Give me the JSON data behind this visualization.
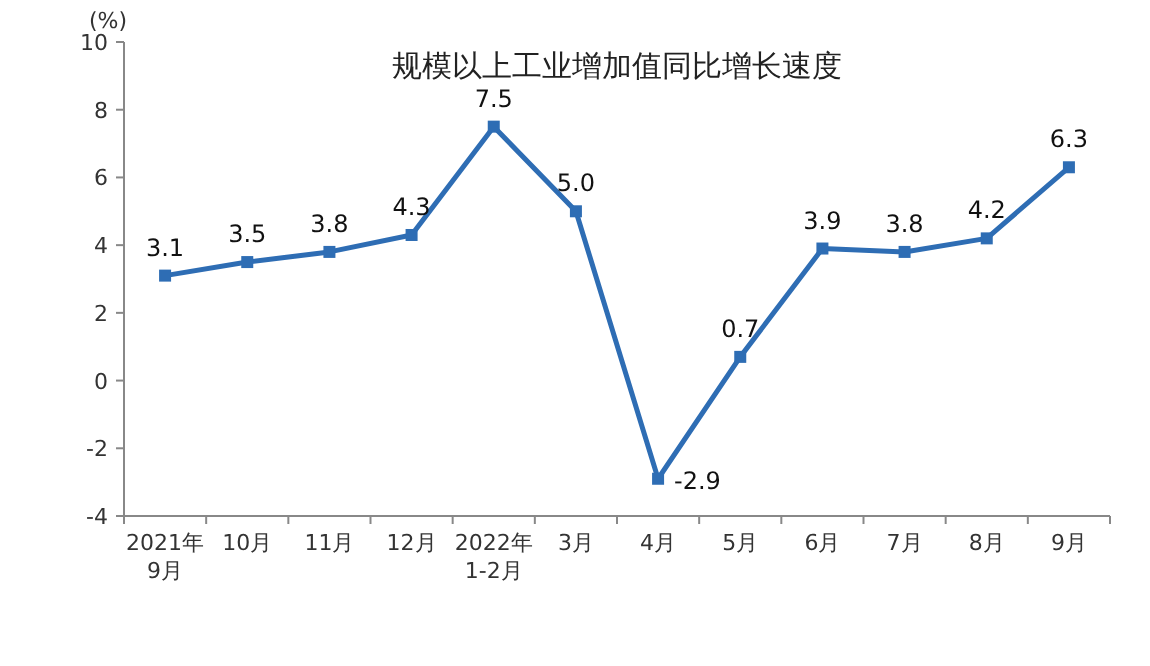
{
  "chart_data": {
    "type": "line",
    "title": "规模以上工业增加值同比增长速度",
    "ylabel": "(%)",
    "categories": [
      "2021年\n9月",
      "10月",
      "11月",
      "12月",
      "2022年\n1-2月",
      "3月",
      "4月",
      "5月",
      "6月",
      "7月",
      "8月",
      "9月"
    ],
    "series": [
      {
        "color": "#2e6db4",
        "values": [
          3.1,
          3.5,
          3.8,
          4.3,
          7.5,
          5.0,
          -2.9,
          0.7,
          3.9,
          3.8,
          4.2,
          6.3
        ]
      }
    ],
    "value_labels": [
      "3.1",
      "3.5",
      "3.8",
      "4.3",
      "7.5",
      "5.0",
      "-2.9",
      "0.7",
      "3.9",
      "3.8",
      "4.2",
      "6.3"
    ],
    "ylim": [
      -4,
      10
    ],
    "yticks": [
      -4,
      -2,
      0,
      2,
      4,
      6,
      8,
      10
    ],
    "marker": "square",
    "line_style": "solid"
  }
}
